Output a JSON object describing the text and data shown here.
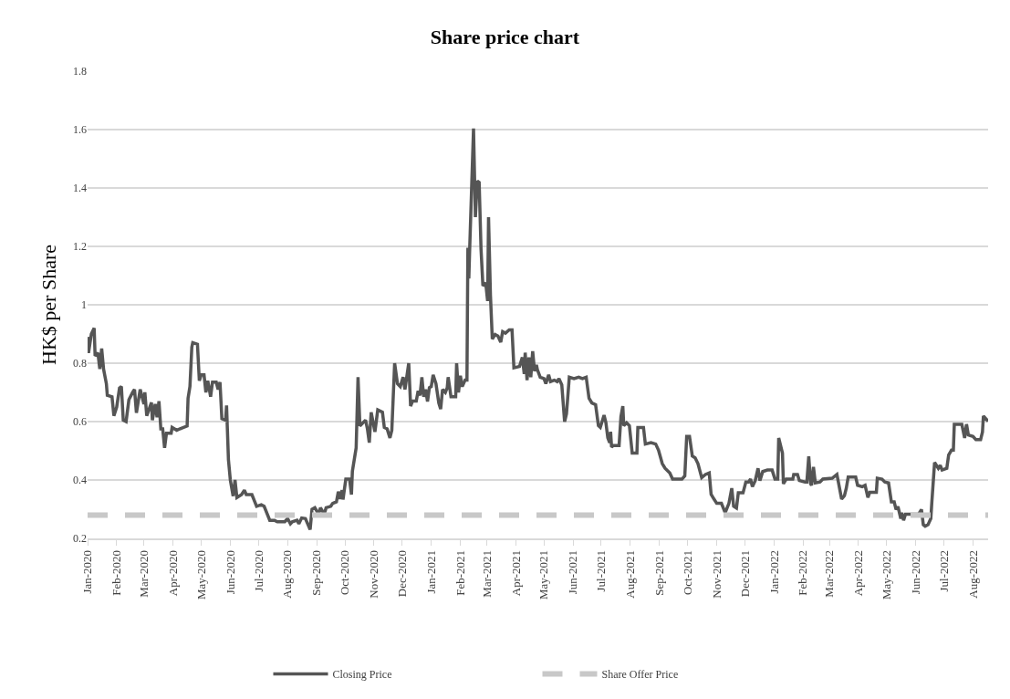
{
  "chart_data": {
    "type": "line",
    "title": "Share price chart",
    "ylabel": "HK$ per Share",
    "xlim": [
      "2020-01-01",
      "2022-08-17"
    ],
    "xticks": [
      {
        "value": "2020-01-01",
        "label": "Jan-2020"
      },
      {
        "value": "2020-02-01",
        "label": "Feb-2020"
      },
      {
        "value": "2020-03-01",
        "label": "Mar-2020"
      },
      {
        "value": "2020-04-01",
        "label": "Apr-2020"
      },
      {
        "value": "2020-05-01",
        "label": "May-2020"
      },
      {
        "value": "2020-06-01",
        "label": "Jun-2020"
      },
      {
        "value": "2020-07-01",
        "label": "Jul-2020"
      },
      {
        "value": "2020-08-01",
        "label": "Aug-2020"
      },
      {
        "value": "2020-09-01",
        "label": "Sep-2020"
      },
      {
        "value": "2020-10-01",
        "label": "Oct-2020"
      },
      {
        "value": "2020-11-01",
        "label": "Nov-2020"
      },
      {
        "value": "2020-12-01",
        "label": "Dec-2020"
      },
      {
        "value": "2021-01-01",
        "label": "Jan-2021"
      },
      {
        "value": "2021-02-01",
        "label": "Feb-2021"
      },
      {
        "value": "2021-03-01",
        "label": "Mar-2021"
      },
      {
        "value": "2021-04-01",
        "label": "Apr-2021"
      },
      {
        "value": "2021-05-01",
        "label": "May-2021"
      },
      {
        "value": "2021-06-01",
        "label": "Jun-2021"
      },
      {
        "value": "2021-07-01",
        "label": "Jul-2021"
      },
      {
        "value": "2021-08-01",
        "label": "Aug-2021"
      },
      {
        "value": "2021-09-01",
        "label": "Sep-2021"
      },
      {
        "value": "2021-10-01",
        "label": "Oct-2021"
      },
      {
        "value": "2021-11-01",
        "label": "Nov-2021"
      },
      {
        "value": "2021-12-01",
        "label": "Dec-2021"
      },
      {
        "value": "2022-01-01",
        "label": "Jan-2022"
      },
      {
        "value": "2022-02-01",
        "label": "Feb-2022"
      },
      {
        "value": "2022-03-01",
        "label": "Mar-2022"
      },
      {
        "value": "2022-04-01",
        "label": "Apr-2022"
      },
      {
        "value": "2022-05-01",
        "label": "May-2022"
      },
      {
        "value": "2022-06-01",
        "label": "Jun-2022"
      },
      {
        "value": "2022-07-01",
        "label": "Jul-2022"
      },
      {
        "value": "2022-08-01",
        "label": "Aug-2022"
      }
    ],
    "ylim": [
      0.2,
      1.8
    ],
    "yticks": [
      0.2,
      0.4,
      0.6,
      0.8,
      1,
      1.2,
      1.4,
      1.6,
      1.8
    ],
    "grid": "y",
    "legend": "bottom",
    "marker": "none",
    "series": [
      {
        "name": "Closing Price",
        "color": "#555555",
        "line_style": "solid",
        "x": [
          "2020-01-01",
          "2020-01-02",
          "2020-01-05",
          "2020-01-08",
          "2020-01-09",
          "2020-01-12",
          "2020-01-14",
          "2020-01-16",
          "2020-01-18",
          "2020-01-21",
          "2020-01-22",
          "2020-01-27",
          "2020-01-29",
          "2020-02-01",
          "2020-02-04",
          "2020-02-06",
          "2020-02-08",
          "2020-02-11",
          "2020-02-14",
          "2020-02-18",
          "2020-02-20",
          "2020-02-22",
          "2020-02-26",
          "2020-03-01",
          "2020-03-02",
          "2020-03-04",
          "2020-03-09",
          "2020-03-10",
          "2020-03-13",
          "2020-03-15",
          "2020-03-17",
          "2020-03-19",
          "2020-03-21",
          "2020-03-23",
          "2020-03-25",
          "2020-03-30",
          "2020-03-31",
          "2020-04-05",
          "2020-04-08",
          "2020-04-16",
          "2020-04-17",
          "2020-04-19",
          "2020-04-21",
          "2020-04-22",
          "2020-04-27",
          "2020-04-29",
          "2020-05-01",
          "2020-05-04",
          "2020-05-06",
          "2020-05-08",
          "2020-05-11",
          "2020-05-13",
          "2020-05-17",
          "2020-05-19",
          "2020-05-21",
          "2020-05-23",
          "2020-05-27",
          "2020-05-28",
          "2020-05-30",
          "2020-06-01",
          "2020-06-04",
          "2020-06-06",
          "2020-06-08",
          "2020-06-13",
          "2020-06-16",
          "2020-06-18",
          "2020-06-24",
          "2020-06-29",
          "2020-07-04",
          "2020-07-07",
          "2020-07-13",
          "2020-07-18",
          "2020-07-21",
          "2020-07-29",
          "2020-08-01",
          "2020-08-04",
          "2020-08-06",
          "2020-08-11",
          "2020-08-13",
          "2020-08-16",
          "2020-08-20",
          "2020-08-25",
          "2020-08-27",
          "2020-08-30",
          "2020-09-03",
          "2020-09-05",
          "2020-09-09",
          "2020-09-11",
          "2020-09-16",
          "2020-09-18",
          "2020-09-22",
          "2020-09-24",
          "2020-09-26",
          "2020-09-28",
          "2020-09-29",
          "2020-10-02",
          "2020-10-06",
          "2020-10-08",
          "2020-10-09",
          "2020-10-13",
          "2020-10-15",
          "2020-10-17",
          "2020-10-23",
          "2020-10-25",
          "2020-10-27",
          "2020-10-29",
          "2020-11-02",
          "2020-11-05",
          "2020-11-10",
          "2020-11-12",
          "2020-11-15",
          "2020-11-18",
          "2020-11-20",
          "2020-11-23",
          "2020-11-26",
          "2020-11-29",
          "2020-12-02",
          "2020-12-04",
          "2020-12-08",
          "2020-12-10",
          "2020-12-12",
          "2020-12-16",
          "2020-12-18",
          "2020-12-20",
          "2020-12-22",
          "2020-12-24",
          "2020-12-26",
          "2020-12-28",
          "2020-12-30",
          "2021-01-01",
          "2021-01-03",
          "2021-01-06",
          "2021-01-09",
          "2021-01-11",
          "2021-01-13",
          "2021-01-16",
          "2021-01-18",
          "2021-01-19",
          "2021-01-22",
          "2021-01-27",
          "2021-01-28",
          "2021-01-30",
          "2021-02-01",
          "2021-02-03",
          "2021-02-06",
          "2021-02-08",
          "2021-02-09",
          "2021-02-10",
          "2021-02-11",
          "2021-02-15",
          "2021-02-17",
          "2021-02-19",
          "2021-02-21",
          "2021-02-23",
          "2021-02-25",
          "2021-02-28",
          "2021-03-02",
          "2021-03-03",
          "2021-03-05",
          "2021-03-07",
          "2021-03-10",
          "2021-03-13",
          "2021-03-16",
          "2021-03-18",
          "2021-03-21",
          "2021-03-25",
          "2021-03-28",
          "2021-03-30",
          "2021-04-05",
          "2021-04-08",
          "2021-04-10",
          "2021-04-11",
          "2021-04-13",
          "2021-04-15",
          "2021-04-17",
          "2021-04-19",
          "2021-04-21",
          "2021-04-23",
          "2021-04-24",
          "2021-04-27",
          "2021-05-01",
          "2021-05-03",
          "2021-05-06",
          "2021-05-08",
          "2021-05-12",
          "2021-05-15",
          "2021-05-17",
          "2021-05-20",
          "2021-05-23",
          "2021-05-25",
          "2021-05-28",
          "2021-06-02",
          "2021-06-07",
          "2021-06-11",
          "2021-06-15",
          "2021-06-18",
          "2021-06-21",
          "2021-06-25",
          "2021-06-28",
          "2021-06-30",
          "2021-07-04",
          "2021-07-06",
          "2021-07-08",
          "2021-07-10",
          "2021-07-11",
          "2021-07-12",
          "2021-07-14",
          "2021-07-20",
          "2021-07-22",
          "2021-07-24",
          "2021-07-25",
          "2021-07-28",
          "2021-07-31",
          "2021-08-03",
          "2021-08-08",
          "2021-08-09",
          "2021-08-15",
          "2021-08-17",
          "2021-08-23",
          "2021-08-28",
          "2021-08-31",
          "2021-09-04",
          "2021-09-07",
          "2021-09-12",
          "2021-09-15",
          "2021-09-25",
          "2021-09-28",
          "2021-09-30",
          "2021-10-03",
          "2021-10-06",
          "2021-10-09",
          "2021-10-12",
          "2021-10-16",
          "2021-10-20",
          "2021-10-24",
          "2021-10-26",
          "2021-10-29",
          "2021-11-01",
          "2021-11-06",
          "2021-11-10",
          "2021-11-14",
          "2021-11-17",
          "2021-11-19",
          "2021-11-22",
          "2021-11-24",
          "2021-11-29",
          "2021-12-02",
          "2021-12-05",
          "2021-12-07",
          "2021-12-09",
          "2021-12-12",
          "2021-12-15",
          "2021-12-17",
          "2021-12-20",
          "2021-12-25",
          "2021-12-30",
          "2022-01-02",
          "2022-01-05",
          "2022-01-06",
          "2022-01-10",
          "2022-01-11",
          "2022-01-14",
          "2022-01-21",
          "2022-01-22",
          "2022-01-26",
          "2022-01-28",
          "2022-02-03",
          "2022-02-05",
          "2022-02-07",
          "2022-02-09",
          "2022-02-10",
          "2022-02-12",
          "2022-02-14",
          "2022-02-19",
          "2022-02-22",
          "2022-03-04",
          "2022-03-09",
          "2022-03-14",
          "2022-03-17",
          "2022-03-19",
          "2022-03-21",
          "2022-03-29",
          "2022-03-31",
          "2022-04-05",
          "2022-04-08",
          "2022-04-11",
          "2022-04-13",
          "2022-04-20",
          "2022-04-21",
          "2022-04-26",
          "2022-04-29",
          "2022-05-03",
          "2022-05-06",
          "2022-05-09",
          "2022-05-11",
          "2022-05-13",
          "2022-05-16",
          "2022-05-17",
          "2022-05-19",
          "2022-05-21",
          "2022-06-04",
          "2022-06-07",
          "2022-06-09",
          "2022-06-11",
          "2022-06-14",
          "2022-06-17",
          "2022-06-18",
          "2022-06-21",
          "2022-06-25",
          "2022-06-27",
          "2022-06-29",
          "2022-07-04",
          "2022-07-06",
          "2022-07-09",
          "2022-07-11",
          "2022-07-12",
          "2022-07-20",
          "2022-07-23",
          "2022-07-25",
          "2022-07-27",
          "2022-08-01",
          "2022-08-04",
          "2022-08-09",
          "2022-08-11",
          "2022-08-12",
          "2022-08-17"
        ],
        "values": [
          0.89,
          0.835,
          0.9,
          0.92,
          0.825,
          0.835,
          0.78,
          0.85,
          0.78,
          0.73,
          0.69,
          0.685,
          0.62,
          0.65,
          0.715,
          0.72,
          0.605,
          0.6,
          0.675,
          0.7,
          0.71,
          0.63,
          0.71,
          0.66,
          0.7,
          0.62,
          0.665,
          0.605,
          0.66,
          0.615,
          0.67,
          0.575,
          0.575,
          0.51,
          0.56,
          0.56,
          0.58,
          0.57,
          0.575,
          0.585,
          0.68,
          0.72,
          0.855,
          0.87,
          0.865,
          0.74,
          0.76,
          0.76,
          0.7,
          0.74,
          0.685,
          0.735,
          0.735,
          0.71,
          0.735,
          0.61,
          0.605,
          0.655,
          0.47,
          0.4,
          0.345,
          0.4,
          0.34,
          0.35,
          0.365,
          0.35,
          0.35,
          0.31,
          0.315,
          0.31,
          0.262,
          0.262,
          0.257,
          0.257,
          0.268,
          0.25,
          0.257,
          0.262,
          0.25,
          0.27,
          0.268,
          0.23,
          0.3,
          0.305,
          0.283,
          0.305,
          0.283,
          0.305,
          0.31,
          0.32,
          0.325,
          0.36,
          0.335,
          0.365,
          0.333,
          0.403,
          0.403,
          0.35,
          0.43,
          0.51,
          0.752,
          0.585,
          0.605,
          0.575,
          0.528,
          0.632,
          0.565,
          0.64,
          0.632,
          0.58,
          0.575,
          0.544,
          0.57,
          0.8,
          0.73,
          0.72,
          0.752,
          0.71,
          0.8,
          0.653,
          0.67,
          0.67,
          0.705,
          0.69,
          0.752,
          0.685,
          0.71,
          0.669,
          0.716,
          0.72,
          0.76,
          0.73,
          0.664,
          0.643,
          0.71,
          0.7,
          0.716,
          0.752,
          0.685,
          0.685,
          0.8,
          0.7,
          0.757,
          0.72,
          0.742,
          0.742,
          1.195,
          1.09,
          1.2,
          1.604,
          1.3,
          1.424,
          1.419,
          1.19,
          1.065,
          1.075,
          1.013,
          1.3,
          1.034,
          0.883,
          0.898,
          0.893,
          0.872,
          0.908,
          0.903,
          0.914,
          0.914,
          0.784,
          0.789,
          0.82,
          0.763,
          0.836,
          0.742,
          0.82,
          0.752,
          0.841,
          0.773,
          0.794,
          0.778,
          0.752,
          0.747,
          0.73,
          0.76,
          0.737,
          0.742,
          0.737,
          0.747,
          0.726,
          0.6,
          0.627,
          0.752,
          0.747,
          0.752,
          0.747,
          0.752,
          0.68,
          0.664,
          0.658,
          0.586,
          0.58,
          0.622,
          0.596,
          0.544,
          0.528,
          0.565,
          0.513,
          0.518,
          0.518,
          0.617,
          0.653,
          0.586,
          0.596,
          0.586,
          0.492,
          0.492,
          0.58,
          0.58,
          0.523,
          0.528,
          0.523,
          0.502,
          0.456,
          0.44,
          0.424,
          0.403,
          0.403,
          0.414,
          0.549,
          0.549,
          0.482,
          0.476,
          0.456,
          0.408,
          0.419,
          0.424,
          0.351,
          0.335,
          0.32,
          0.32,
          0.288,
          0.32,
          0.372,
          0.31,
          0.304,
          0.356,
          0.356,
          0.393,
          0.393,
          0.403,
          0.377,
          0.398,
          0.44,
          0.398,
          0.429,
          0.434,
          0.434,
          0.403,
          0.403,
          0.544,
          0.492,
          0.387,
          0.403,
          0.403,
          0.419,
          0.419,
          0.398,
          0.393,
          0.393,
          0.481,
          0.387,
          0.382,
          0.445,
          0.39,
          0.393,
          0.403,
          0.406,
          0.419,
          0.335,
          0.346,
          0.372,
          0.41,
          0.41,
          0.382,
          0.377,
          0.382,
          0.34,
          0.358,
          0.358,
          0.406,
          0.403,
          0.393,
          0.39,
          0.325,
          0.325,
          0.299,
          0.309,
          0.268,
          0.288,
          0.262,
          0.283,
          0.283,
          0.299,
          0.247,
          0.242,
          0.247,
          0.268,
          0.32,
          0.46,
          0.44,
          0.45,
          0.434,
          0.44,
          0.486,
          0.502,
          0.502,
          0.591,
          0.591,
          0.544,
          0.591,
          0.554,
          0.549,
          0.538,
          0.538,
          0.564,
          0.619,
          0.601
        ]
      },
      {
        "name": "Share Offer Price",
        "color": "#c8c8c8",
        "line_style": "dashed",
        "x": [
          "2020-01-01",
          "2022-08-17"
        ],
        "values": [
          0.28,
          0.28
        ]
      }
    ]
  }
}
